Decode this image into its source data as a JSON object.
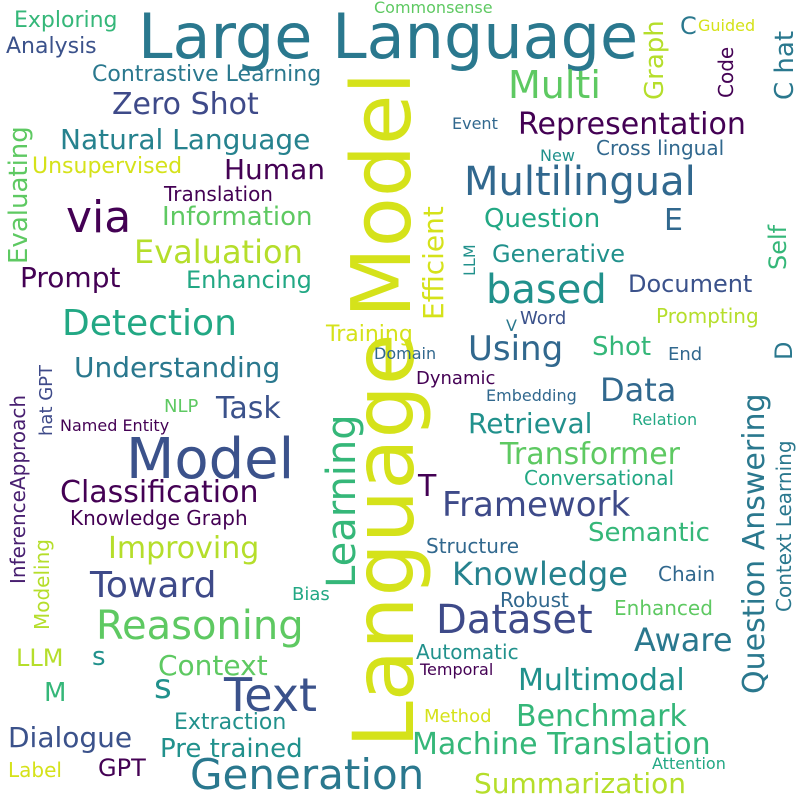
{
  "words": [
    {
      "text": "Large Language",
      "color": "#2a788e"
    },
    {
      "text": "Model",
      "color": "#d5e21a"
    },
    {
      "text": "Language",
      "color": "#d5e21a"
    },
    {
      "text": "Learning",
      "color": "#35b779"
    },
    {
      "text": "Model",
      "color": "#3b528b"
    },
    {
      "text": "Text",
      "color": "#3b528b"
    },
    {
      "text": "Generation",
      "color": "#2a788e"
    },
    {
      "text": "Multilingual",
      "color": "#31688e"
    },
    {
      "text": "Reasoning",
      "color": "#5ec962"
    },
    {
      "text": "Dataset",
      "color": "#3e4a89"
    },
    {
      "text": "via",
      "color": "#440154"
    },
    {
      "text": "based",
      "color": "#21918c"
    },
    {
      "text": "Detection",
      "color": "#22a884"
    },
    {
      "text": "Multi",
      "color": "#5ec962"
    },
    {
      "text": "Toward",
      "color": "#3e4a89"
    },
    {
      "text": "Question Answering",
      "color": "#2a788e"
    },
    {
      "text": "Framework",
      "color": "#3e4a89"
    },
    {
      "text": "Knowledge",
      "color": "#26828e"
    },
    {
      "text": "Machine Translation",
      "color": "#35b779"
    },
    {
      "text": "Classification",
      "color": "#440154"
    },
    {
      "text": "Evaluation",
      "color": "#b5de2b"
    },
    {
      "text": "Using",
      "color": "#31688e"
    },
    {
      "text": "Representation",
      "color": "#440154"
    },
    {
      "text": "Zero Shot",
      "color": "#3e4a89"
    },
    {
      "text": "Natural Language",
      "color": "#26828e"
    },
    {
      "text": "Data",
      "color": "#31688e"
    },
    {
      "text": "Benchmark",
      "color": "#35b779"
    },
    {
      "text": "Transformer",
      "color": "#5ec962"
    },
    {
      "text": "Multimodal",
      "color": "#21918c"
    },
    {
      "text": "Aware",
      "color": "#2a788e"
    },
    {
      "text": "Efficient",
      "color": "#d5e21a"
    },
    {
      "text": "Understanding",
      "color": "#2a788e"
    },
    {
      "text": "Dialogue",
      "color": "#3b528b"
    },
    {
      "text": "Improving",
      "color": "#b5de2b"
    },
    {
      "text": "Evaluating",
      "color": "#5ec962"
    },
    {
      "text": "Summarization",
      "color": "#b5de2b"
    },
    {
      "text": "Pre trained",
      "color": "#21918c"
    },
    {
      "text": "Task",
      "color": "#3b528b"
    },
    {
      "text": "Retrieval",
      "color": "#21918c"
    },
    {
      "text": "Human",
      "color": "#440154"
    },
    {
      "text": "Prompt",
      "color": "#440154"
    },
    {
      "text": "Context",
      "color": "#5ec962"
    },
    {
      "text": "Document",
      "color": "#3b528b"
    },
    {
      "text": "Generative",
      "color": "#21918c"
    },
    {
      "text": "Question",
      "color": "#22a884"
    },
    {
      "text": "Information",
      "color": "#5ec962"
    },
    {
      "text": "Enhancing",
      "color": "#22a884"
    },
    {
      "text": "Semantic",
      "color": "#35b779"
    },
    {
      "text": "Shot",
      "color": "#35b779"
    },
    {
      "text": "Conversational",
      "color": "#22a884"
    },
    {
      "text": "Training",
      "color": "#d5e21a"
    },
    {
      "text": "Contrastive Learning",
      "color": "#2a788e"
    },
    {
      "text": "Knowledge Graph",
      "color": "#440154"
    },
    {
      "text": "Graph",
      "color": "#b5de2b"
    },
    {
      "text": "Self",
      "color": "#35b779"
    },
    {
      "text": "Context Learning",
      "color": "#2a788e"
    },
    {
      "text": "Cross lingual",
      "color": "#31688e"
    },
    {
      "text": "InferenceApproach",
      "color": "#481f70"
    },
    {
      "text": "Modeling",
      "color": "#b5de2b"
    },
    {
      "text": "Unsupervised",
      "color": "#d5e21a"
    },
    {
      "text": "Translation",
      "color": "#440154"
    },
    {
      "text": "Code",
      "color": "#440154"
    },
    {
      "text": "C hat",
      "color": "#2a788e"
    },
    {
      "text": "Exploring",
      "color": "#35b779"
    },
    {
      "text": "Analysis",
      "color": "#3b528b"
    },
    {
      "text": "Extraction",
      "color": "#21918c"
    },
    {
      "text": "Structure",
      "color": "#31688e"
    },
    {
      "text": "Chain",
      "color": "#31688e"
    },
    {
      "text": "Robust",
      "color": "#31688e"
    },
    {
      "text": "Enhanced",
      "color": "#5ec962"
    },
    {
      "text": "Automatic",
      "color": "#21918c"
    },
    {
      "text": "Prompting",
      "color": "#b5de2b"
    },
    {
      "text": "Embedding",
      "color": "#31688e"
    },
    {
      "text": "Dynamic",
      "color": "#440154"
    },
    {
      "text": "hat GPT",
      "color": "#3e4a89"
    },
    {
      "text": "Word",
      "color": "#3b528b"
    },
    {
      "text": "End",
      "color": "#31688e"
    },
    {
      "text": "Commonsense",
      "color": "#5ec962"
    },
    {
      "text": "Guided",
      "color": "#d5e21a"
    },
    {
      "text": "Event",
      "color": "#31688e"
    },
    {
      "text": "New",
      "color": "#21918c"
    },
    {
      "text": "Domain",
      "color": "#31688e"
    },
    {
      "text": "Relation",
      "color": "#22a884"
    },
    {
      "text": "Named Entity",
      "color": "#440154"
    },
    {
      "text": "NLP",
      "color": "#5ec962"
    },
    {
      "text": "Bias",
      "color": "#22a884"
    },
    {
      "text": "LLM",
      "color": "#21918c"
    },
    {
      "text": "LLM",
      "color": "#b5de2b"
    },
    {
      "text": "s",
      "color": "#21918c"
    },
    {
      "text": "s",
      "color": "#21918c"
    },
    {
      "text": "M",
      "color": "#35b779"
    },
    {
      "text": "E",
      "color": "#31688e"
    },
    {
      "text": "T",
      "color": "#440154"
    },
    {
      "text": "C",
      "color": "#2a788e"
    },
    {
      "text": "V",
      "color": "#2a788e"
    },
    {
      "text": "D",
      "color": "#2a788e"
    },
    {
      "text": "GPT",
      "color": "#440154"
    },
    {
      "text": "Label",
      "color": "#d5e21a"
    },
    {
      "text": "Method",
      "color": "#d5e21a"
    },
    {
      "text": "Temporal",
      "color": "#440154"
    },
    {
      "text": "Attention",
      "color": "#22a884"
    }
  ]
}
